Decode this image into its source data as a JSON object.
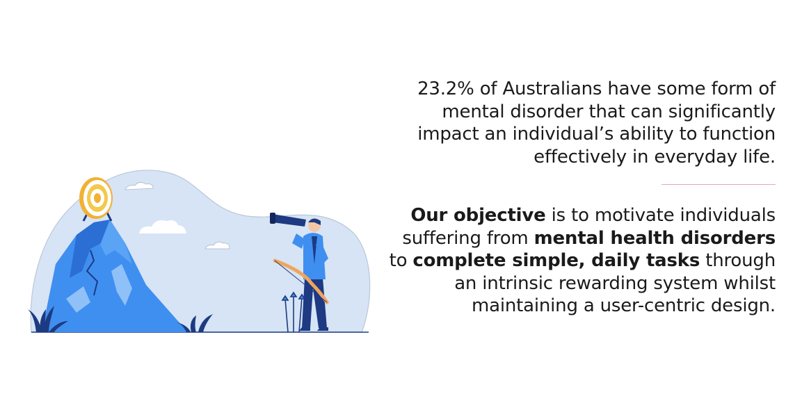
{
  "statistic": {
    "text": "23.2% of Australians have some form of mental disorder that can significantly impact an individual’s ability to function effectively in everyday life."
  },
  "objective": {
    "lead_bold": "Our objective",
    "text_1": " is to motivate individuals suffering from ",
    "bold_2": "mental health disorders",
    "text_2": " to ",
    "bold_3": "complete simple, daily tasks",
    "text_3": " through an intrinsic rewarding system whilst maintaining a user-centric design."
  },
  "colors": {
    "accent_blue": "#3f8ff0",
    "dark_navy": "#1d3a82",
    "background_blob": "#d6e4f5",
    "divider": "#e9a6b8",
    "target_yellow": "#f2c94c"
  },
  "illustration": {
    "icons": [
      "mountain-icon",
      "archery-target-icon",
      "person-with-telescope-icon",
      "bow-icon",
      "arrows-icon",
      "cloud-icon",
      "plant-icon"
    ]
  }
}
